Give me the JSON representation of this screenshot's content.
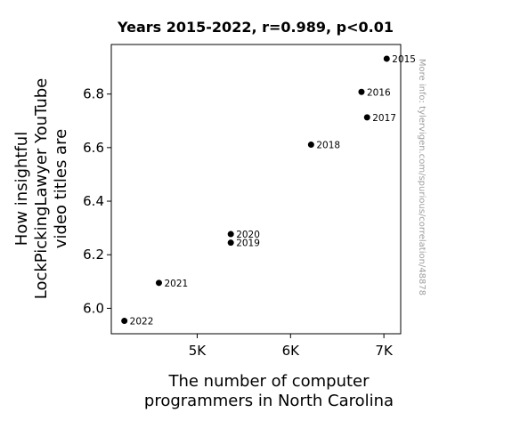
{
  "chart_data": {
    "type": "scatter",
    "title": "Years 2015-2022, r=0.989, p<0.01",
    "xlabel": [
      "The number of computer",
      "programmers in North Carolina"
    ],
    "ylabel": [
      "How insightful",
      "LockPickingLawyer YouTube",
      "video titles are"
    ],
    "xlim": [
      4080,
      7180
    ],
    "ylim": [
      5.905,
      6.985
    ],
    "x_ticks": [
      {
        "value": 5000,
        "label": "5K"
      },
      {
        "value": 6000,
        "label": "6K"
      },
      {
        "value": 7000,
        "label": "7K"
      }
    ],
    "y_ticks": [
      {
        "value": 6.0,
        "label": "6.0"
      },
      {
        "value": 6.2,
        "label": "6.2"
      },
      {
        "value": 6.4,
        "label": "6.4"
      },
      {
        "value": 6.6,
        "label": "6.6"
      },
      {
        "value": 6.8,
        "label": "6.8"
      }
    ],
    "grid": false,
    "points": [
      {
        "label": "2015",
        "x": 7030,
        "y": 6.932
      },
      {
        "label": "2016",
        "x": 6760,
        "y": 6.808
      },
      {
        "label": "2017",
        "x": 6820,
        "y": 6.713
      },
      {
        "label": "2018",
        "x": 6220,
        "y": 6.611
      },
      {
        "label": "2020",
        "x": 5360,
        "y": 6.277
      },
      {
        "label": "2019",
        "x": 5360,
        "y": 6.245
      },
      {
        "label": "2021",
        "x": 4590,
        "y": 6.095
      },
      {
        "label": "2022",
        "x": 4220,
        "y": 5.953
      }
    ],
    "marker_color": "#000000"
  },
  "watermark": "More info: tylervigen.com/spurious/correlation/48878"
}
